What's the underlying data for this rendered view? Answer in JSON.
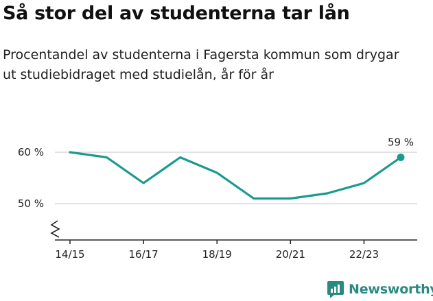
{
  "header": {
    "title": "Så stor del av studenterna tar lån",
    "subtitle": "Procentandel av studenterna i Fagersta kommun som drygar ut studiebidraget med studielån, år för år"
  },
  "brand": {
    "name": "Newsworthy"
  },
  "colors": {
    "line": "#1a9a8f",
    "grid": "#d9d9d9",
    "axis": "#222222",
    "brand": "#2a8a82"
  },
  "chart_data": {
    "type": "line",
    "title": "Så stor del av studenterna tar lån",
    "subtitle": "Procentandel av studenterna i Fagersta kommun som drygar ut studiebidraget med studielån, år för år",
    "xlabel": "",
    "ylabel": "",
    "x": [
      "14/15",
      "15/16",
      "16/17",
      "17/18",
      "18/19",
      "19/20",
      "20/21",
      "21/22",
      "22/23",
      "23/24"
    ],
    "x_tick_labels": [
      "14/15",
      "16/17",
      "18/19",
      "20/21",
      "22/23"
    ],
    "series": [
      {
        "values": [
          60,
          59,
          54,
          59,
          56,
          51,
          51,
          52,
          54,
          59
        ]
      }
    ],
    "y_ticks": [
      50,
      60
    ],
    "y_tick_labels": [
      "50 %",
      "60 %"
    ],
    "ylim": [
      44,
      63
    ],
    "y_axis_break": true,
    "end_label": "59 %",
    "grid": true
  }
}
